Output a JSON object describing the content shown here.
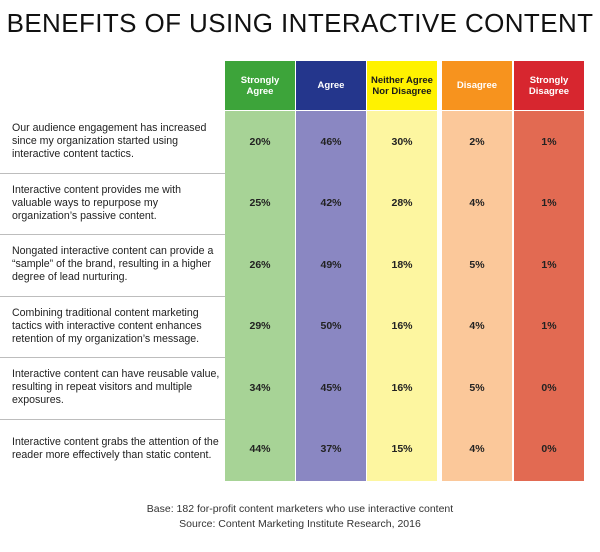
{
  "title": "BENEFITS OF USING INTERACTIVE CONTENT",
  "colors": {
    "header": [
      "#3da43a",
      "#24368c",
      "#fff200",
      "#f7931e",
      "#d7262f"
    ],
    "header_text": [
      "#ffffff",
      "#ffffff",
      "#1a1a1a",
      "#ffffff",
      "#ffffff"
    ],
    "column": [
      "#a7d396",
      "#8a87c2",
      "#fdf6a0",
      "#fbc89a",
      "#e26a52"
    ]
  },
  "chart_data": {
    "type": "table",
    "title": "BENEFITS OF USING INTERACTIVE CONTENT",
    "columns": [
      "Strongly Agree",
      "Agree",
      "Neither Agree Nor Disagree",
      "Disagree",
      "Strongly Disagree"
    ],
    "rows": [
      {
        "label": "Our audience engagement has increased since my organization started using interactive content tactics.",
        "values": [
          "20%",
          "46%",
          "30%",
          "2%",
          "1%"
        ]
      },
      {
        "label": "Interactive content provides me with valuable ways to repurpose my organization’s passive content.",
        "values": [
          "25%",
          "42%",
          "28%",
          "4%",
          "1%"
        ]
      },
      {
        "label": "Nongated interactive content can provide a “sample” of the brand, resulting in a higher degree of lead nurturing.",
        "values": [
          "26%",
          "49%",
          "18%",
          "5%",
          "1%"
        ]
      },
      {
        "label": "Combining traditional content marketing tactics with interactive content enhances retention of my organization’s message.",
        "values": [
          "29%",
          "50%",
          "16%",
          "4%",
          "1%"
        ]
      },
      {
        "label": "Interactive content can have reusable value, resulting in repeat visitors and multiple exposures.",
        "values": [
          "34%",
          "45%",
          "16%",
          "5%",
          "0%"
        ]
      },
      {
        "label": "Interactive content grabs the attention of the reader more effectively than static content.",
        "values": [
          "44%",
          "37%",
          "15%",
          "4%",
          "0%"
        ]
      }
    ]
  },
  "footer": {
    "base": "Base: 182 for-profit content marketers who use interactive content",
    "source": "Source: Content Marketing Institute Research, 2016"
  }
}
